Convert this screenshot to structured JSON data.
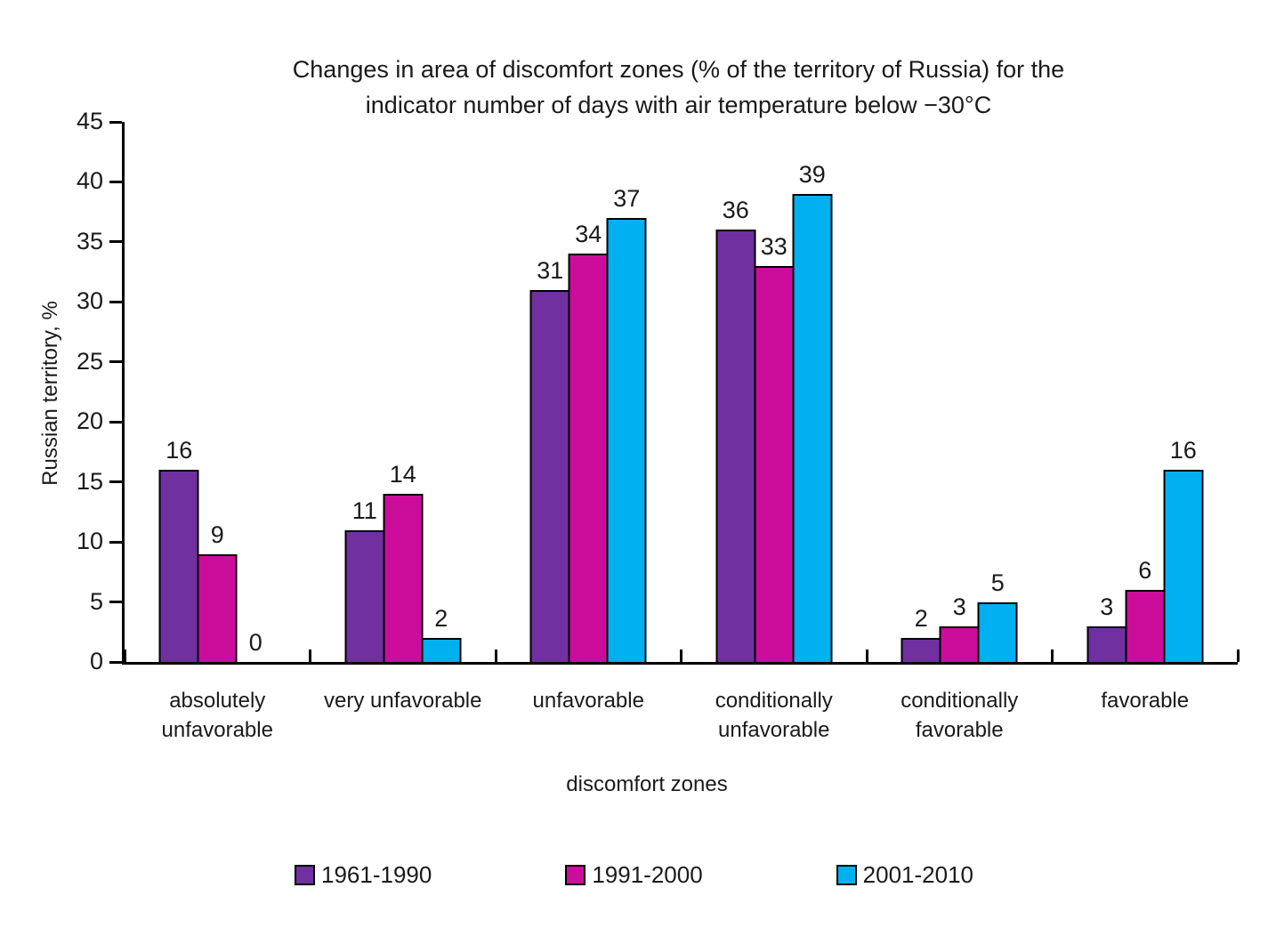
{
  "chart_data": {
    "type": "bar",
    "title_line1": "Changes in area of discomfort zones (% of the territory of Russia) for the",
    "title_line2": "indicator number of days with air temperature below −30°C",
    "ylabel": "Russian territory, %",
    "xlabel": "discomfort zones",
    "ylim": [
      0,
      45
    ],
    "ytick_step": 5,
    "grid": false,
    "bar_labels": true,
    "legend_position": "bottom",
    "categories": [
      "absolutely unfavorable",
      "very unfavorable",
      "unfavorable",
      "conditionally unfavorable",
      "conditionally favorable",
      "favorable"
    ],
    "series": [
      {
        "name": "1961-1990",
        "color": "#7030A0",
        "values": [
          16,
          11,
          31,
          36,
          2,
          3
        ]
      },
      {
        "name": "1991-2000",
        "color": "#CC0D9C",
        "values": [
          9,
          14,
          34,
          33,
          3,
          6
        ]
      },
      {
        "name": "2001-2010",
        "color": "#00B0F0",
        "values": [
          0,
          2,
          37,
          39,
          5,
          16
        ]
      }
    ]
  }
}
